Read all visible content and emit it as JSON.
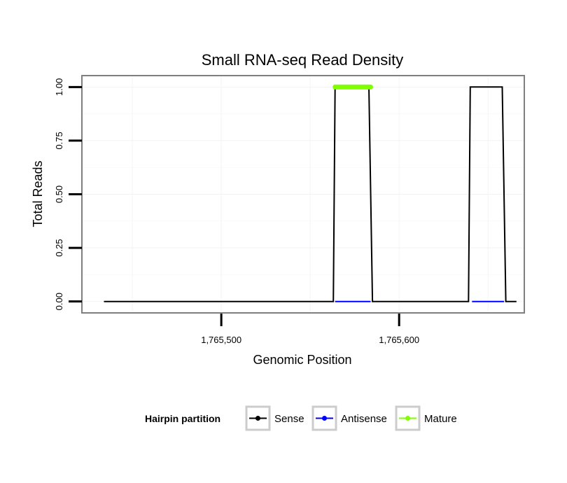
{
  "chart_data": {
    "type": "line",
    "title": "Small RNA-seq Read Density",
    "xlabel": "Genomic Position",
    "ylabel": "Total Reads",
    "xlim": [
      1765422,
      1765670
    ],
    "ylim": [
      -0.05,
      1.05
    ],
    "x_ticks": [
      1765500,
      1765600
    ],
    "x_tick_labels": [
      "1,765,500",
      "1,765,600"
    ],
    "y_ticks": [
      0,
      0.25,
      0.5,
      0.75,
      1
    ],
    "y_tick_labels": [
      "0.00",
      "0.25",
      "0.50",
      "0.75",
      "1.00"
    ],
    "grid": true,
    "legend_position": "bottom",
    "legend_title": "Hairpin partition",
    "series": [
      {
        "name": "Sense",
        "color": "#000000",
        "width": 2,
        "x": [
          1765434,
          1765563,
          1765564,
          1765583,
          1765585,
          1765639,
          1765640,
          1765658,
          1765660,
          1765666
        ],
        "y": [
          0,
          0,
          1,
          1,
          0,
          0,
          1,
          1,
          0,
          0
        ]
      },
      {
        "name": "Antisense",
        "color": "#0000ff",
        "width": 2,
        "x": [
          1765564,
          1765584
        ],
        "y": [
          0,
          0
        ],
        "segments": [
          {
            "x": [
              1765564,
              1765584
            ],
            "y": [
              0,
              0
            ]
          },
          {
            "x": [
              1765641,
              1765659
            ],
            "y": [
              0,
              0
            ]
          }
        ]
      },
      {
        "name": "Mature",
        "color": "#7fff00",
        "width": 7,
        "x": [
          1765564,
          1765584
        ],
        "y": [
          1,
          1
        ]
      }
    ]
  }
}
